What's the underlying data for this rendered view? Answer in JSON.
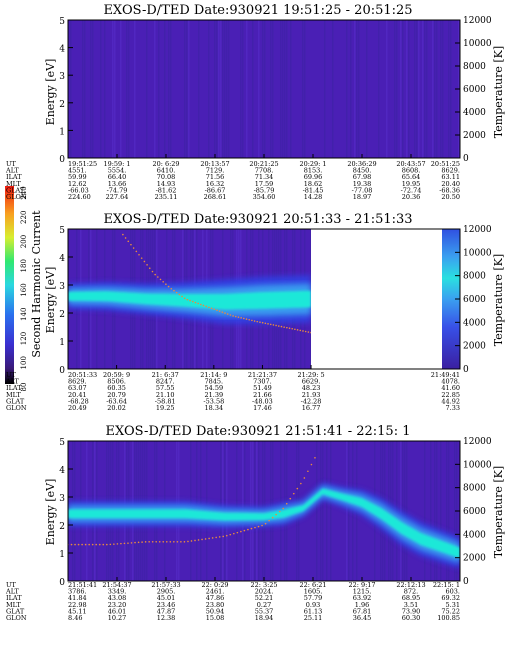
{
  "colors": {
    "background": "#4a1fb5",
    "band_low": "#2d44e8",
    "band_mid": "#3aa0f0",
    "band_high": "#1ee8d8",
    "trace": "#e88a40"
  },
  "colorbar": {
    "label": "Second Harmonic Current",
    "ticks": [
      "240",
      "220",
      "200",
      "180",
      "160",
      "140",
      "120",
      "100",
      "80"
    ]
  },
  "chart_data": [
    {
      "type": "heatmap",
      "title": "EXOS-D/TED   Date:930921   19:51:25 - 20:51:25",
      "ylabel": "Energy [eV]",
      "y2label": "Temperature [K]",
      "ylim": [
        0,
        5
      ],
      "y2lim": [
        0,
        12000
      ],
      "yticks": [
        "5",
        "4",
        "3",
        "2",
        "1",
        "0"
      ],
      "y2ticks": [
        "12000",
        "10000",
        "8000",
        "6000",
        "4000",
        "2000",
        "0"
      ],
      "band": null,
      "trace": null,
      "columns": 9,
      "table": [
        {
          "name": "UT",
          "values": [
            "19:51:25",
            "19:59: 1",
            "20: 6:29",
            "20:13:57",
            "20:21:25",
            "20:29: 1",
            "20:36:29",
            "20:43:57",
            "20:51:25"
          ]
        },
        {
          "name": "ALT",
          "values": [
            "4551.",
            "5554.",
            "6410.",
            "7129.",
            "7708.",
            "8153.",
            "8450.",
            "8608.",
            "8629."
          ]
        },
        {
          "name": "ILAT",
          "values": [
            "59.99",
            "66.40",
            "70.08",
            "71.56",
            "71.34",
            "69.96",
            "67.98",
            "65.64",
            "63.11"
          ]
        },
        {
          "name": "MLT",
          "values": [
            "12.62",
            "13.66",
            "14.93",
            "16.32",
            "17.59",
            "18.62",
            "19.38",
            "19.95",
            "20.40"
          ]
        },
        {
          "name": "GLAT",
          "values": [
            "-66.03",
            "-74.79",
            "-81.62",
            "-86.67",
            "-85.79",
            "-81.45",
            "-77.08",
            "-72.74",
            "-68.36"
          ]
        },
        {
          "name": "GLON",
          "values": [
            "224.60",
            "227.64",
            "235.11",
            "268.61",
            "354.60",
            "14.28",
            "18.97",
            "20.36",
            "20.50"
          ]
        }
      ]
    },
    {
      "type": "heatmap",
      "title": "EXOS-D/TED   Date:930921   20:51:33 - 21:51:33",
      "ylabel": "Energy [eV]",
      "y2label": "Temperature [K]",
      "ylim": [
        0,
        5
      ],
      "y2lim": [
        0,
        12000
      ],
      "yticks": [
        "5",
        "4",
        "3",
        "2",
        "1",
        "0"
      ],
      "y2ticks": [
        "12000",
        "10000",
        "8000",
        "6000",
        "4000",
        "2000",
        "0"
      ],
      "data_end_fraction": 0.62,
      "band": {
        "t": [
          0.0,
          0.1,
          0.2,
          0.3,
          0.4,
          0.5,
          0.62
        ],
        "center_eV": [
          2.6,
          2.6,
          2.5,
          2.45,
          2.4,
          2.45,
          2.5
        ],
        "width_eV": [
          0.9,
          1.0,
          1.1,
          1.3,
          1.6,
          1.7,
          1.7
        ]
      },
      "trace": {
        "t": [
          0.14,
          0.18,
          0.22,
          0.26,
          0.3,
          0.36,
          0.42,
          0.48,
          0.55,
          0.62
        ],
        "eV": [
          4.8,
          4.1,
          3.4,
          2.9,
          2.5,
          2.2,
          1.9,
          1.7,
          1.5,
          1.3
        ]
      },
      "columns": 7,
      "table": [
        {
          "name": "UT",
          "values": [
            "20:51:33",
            "20:59: 9",
            "21: 6:37",
            "21:14: 9",
            "21:21:37",
            "21:29: 5",
            "21:49:41"
          ]
        },
        {
          "name": "ALT",
          "values": [
            "8629.",
            "8506.",
            "8247.",
            "7845.",
            "7307.",
            "6629.",
            "4078."
          ]
        },
        {
          "name": "ILAT",
          "values": [
            "63.07",
            "60.35",
            "57.55",
            "54.59",
            "51.49",
            "48.23",
            "41.60"
          ]
        },
        {
          "name": "MLT",
          "values": [
            "20.41",
            "20.79",
            "21.10",
            "21.39",
            "21.66",
            "21.93",
            "22.85"
          ]
        },
        {
          "name": "GLAT",
          "values": [
            "-68.28",
            "-63.64",
            "-58.81",
            "-53.58",
            "-48.03",
            "-42.28",
            "44.92"
          ]
        },
        {
          "name": "GLON",
          "values": [
            "20.49",
            "20.02",
            "19.25",
            "18.34",
            "17.46",
            "16.77",
            "7.33"
          ]
        }
      ]
    },
    {
      "type": "heatmap",
      "title": "EXOS-D/TED   Date:930921   21:51:41 - 22:15: 1",
      "ylabel": "Energy [eV]",
      "y2label": "Temperature [K]",
      "ylim": [
        0,
        5
      ],
      "y2lim": [
        0,
        12000
      ],
      "yticks": [
        "5",
        "4",
        "3",
        "2",
        "1",
        "0"
      ],
      "y2ticks": [
        "12000",
        "10000",
        "8000",
        "6000",
        "4000",
        "2000",
        "0"
      ],
      "band": {
        "t": [
          0.0,
          0.1,
          0.2,
          0.3,
          0.4,
          0.5,
          0.55,
          0.6,
          0.65,
          0.7,
          0.75,
          0.8,
          0.85,
          0.9,
          1.0
        ],
        "center_eV": [
          2.4,
          2.4,
          2.4,
          2.4,
          2.3,
          2.3,
          2.4,
          2.6,
          3.2,
          3.0,
          2.8,
          2.4,
          1.9,
          1.5,
          1.0
        ],
        "width_eV": [
          0.9,
          0.9,
          0.9,
          0.9,
          0.8,
          0.7,
          0.8,
          0.6,
          0.6,
          0.7,
          0.9,
          1.1,
          1.2,
          1.2,
          1.1
        ]
      },
      "trace": {
        "t": [
          0.0,
          0.1,
          0.2,
          0.3,
          0.4,
          0.5,
          0.55,
          0.6,
          0.63
        ],
        "eV": [
          1.3,
          1.3,
          1.4,
          1.4,
          1.6,
          2.0,
          2.6,
          3.6,
          4.4
        ]
      },
      "columns": 9,
      "table": [
        {
          "name": "UT",
          "values": [
            "21:51:41",
            "21:54:37",
            "21:57:33",
            "22: 0:29",
            "22: 3:25",
            "22: 6:21",
            "22: 9:17",
            "22:12:13",
            "22:15: 1"
          ]
        },
        {
          "name": "ALT",
          "values": [
            "3786.",
            "3349.",
            "2905.",
            "2461.",
            "2024.",
            "1605.",
            "1215.",
            "872.",
            "603."
          ]
        },
        {
          "name": "ILAT",
          "values": [
            "41.84",
            "43.08",
            "45.01",
            "47.86",
            "52.21",
            "57.79",
            "63.92",
            "68.95",
            "69.32"
          ]
        },
        {
          "name": "MLT",
          "values": [
            "22.98",
            "23.20",
            "23.46",
            "23.80",
            "0.27",
            "0.93",
            "1.96",
            "3.51",
            "5.31"
          ]
        },
        {
          "name": "GLAT",
          "values": [
            "45.11",
            "46.01",
            "47.87",
            "50.94",
            "55.37",
            "61.13",
            "67.81",
            "73.90",
            "75.22"
          ]
        },
        {
          "name": "GLON",
          "values": [
            "8.46",
            "10.27",
            "12.38",
            "15.08",
            "18.94",
            "25.11",
            "36.45",
            "60.30",
            "100.85"
          ]
        }
      ]
    }
  ]
}
